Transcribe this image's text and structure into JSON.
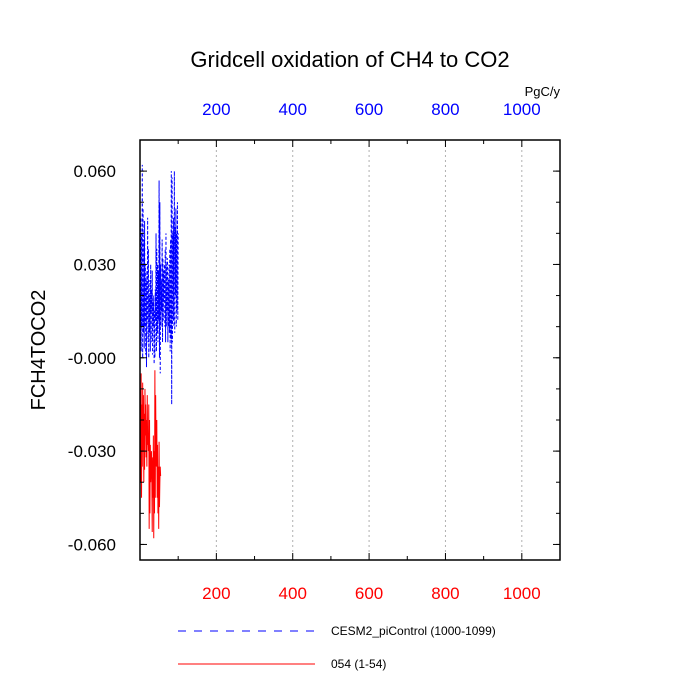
{
  "chart_data": {
    "type": "line",
    "title": "Gridcell oxidation of CH4 to CO2",
    "ylabel": "FCH4TOCO2",
    "top_axis_units": "PgC/y",
    "xlim": [
      0,
      1100
    ],
    "ylim": [
      -0.065,
      0.07
    ],
    "x_ticks": [
      200,
      400,
      600,
      800,
      1000
    ],
    "x_tick_labels": [
      "200",
      "400",
      "600",
      "800",
      "1000"
    ],
    "y_ticks": [
      0.06,
      0.03,
      0.0,
      -0.03,
      -0.06
    ],
    "y_tick_labels": [
      "0.060",
      "0.030",
      "-0.000",
      "-0.030",
      "-0.060"
    ],
    "top_axis_color": "#0000ff",
    "bottom_axis_color": "#ff0000",
    "grid": "vertical dashed at x ticks",
    "series": [
      {
        "name": "CESM2_piControl (1000-1099)",
        "legend_label": "CESM2_piControl (1000-1099)",
        "color": "#0000ff",
        "style": "dashed",
        "x_start": 1,
        "values": [
          0.005,
          0.045,
          0.002,
          0.04,
          0.01,
          0.062,
          0.0,
          0.048,
          0.008,
          0.038,
          0.003,
          0.044,
          0.01,
          0.03,
          0.001,
          0.025,
          -0.003,
          0.028,
          0.012,
          0.045,
          0.005,
          0.035,
          0.0,
          0.02,
          0.008,
          0.025,
          0.002,
          0.03,
          0.015,
          0.022,
          0.005,
          0.028,
          0.001,
          0.018,
          0.01,
          0.02,
          -0.002,
          0.015,
          0.0,
          0.022,
          0.012,
          0.04,
          0.002,
          0.035,
          0.008,
          0.03,
          0.005,
          0.028,
          0.012,
          0.057,
          0.0,
          0.05,
          -0.005,
          0.03,
          0.01,
          0.025,
          0.015,
          0.038,
          0.005,
          0.032,
          0.012,
          0.028,
          0.018,
          0.03,
          0.01,
          0.035,
          0.005,
          0.04,
          0.01,
          0.03,
          0.015,
          0.032,
          0.005,
          0.025,
          0.01,
          0.03,
          0.008,
          0.035,
          0.002,
          0.038,
          0.006,
          0.06,
          -0.015,
          0.058,
          0.005,
          0.04,
          0.012,
          0.045,
          0.01,
          0.06,
          0.008,
          0.042,
          0.02,
          0.048,
          0.01,
          0.04,
          0.015,
          0.05,
          0.012,
          0.04
        ]
      },
      {
        "name": "054 (1-54)",
        "legend_label": "054 (1-54)",
        "color": "#ff0000",
        "style": "solid",
        "x_start": 1,
        "values": [
          -0.01,
          -0.04,
          -0.005,
          -0.045,
          -0.015,
          -0.035,
          -0.008,
          -0.03,
          -0.012,
          -0.04,
          -0.018,
          -0.036,
          -0.01,
          -0.025,
          -0.015,
          -0.032,
          -0.02,
          -0.035,
          -0.012,
          -0.028,
          -0.025,
          -0.03,
          -0.015,
          -0.055,
          -0.02,
          -0.05,
          -0.028,
          -0.04,
          -0.035,
          -0.03,
          -0.04,
          -0.056,
          -0.032,
          -0.045,
          -0.025,
          -0.058,
          -0.03,
          -0.05,
          -0.004,
          -0.045,
          -0.012,
          -0.03,
          -0.035,
          -0.02,
          -0.045,
          -0.028,
          -0.05,
          -0.035,
          -0.055,
          -0.027,
          -0.048,
          -0.04,
          -0.035,
          -0.038
        ]
      }
    ]
  }
}
